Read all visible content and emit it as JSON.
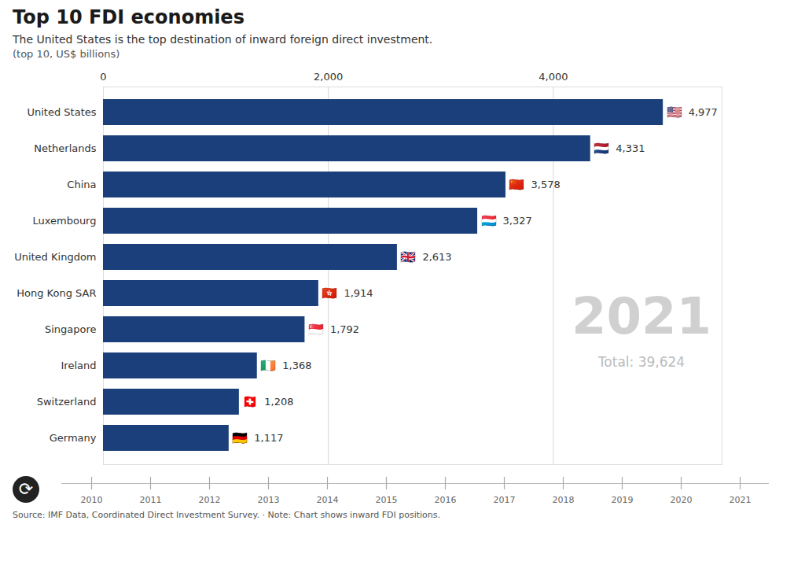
{
  "chart_data": {
    "type": "bar",
    "orientation": "horizontal",
    "title": "Top 10 FDI economies",
    "subtitle": "The United States is the top destination of inward foreign direct investment.",
    "annotations": [
      "(top 10, US$ billions)",
      "2021",
      "Total: 39,624",
      "⟳"
    ],
    "source": "Source: IMF Data, Coordinated Direct Investment Survey.  · Note: Chart shows inward FDI positions.",
    "categories": [
      "United States",
      "Netherlands",
      "China",
      "Luxembourg",
      "United Kingdom",
      "Hong Kong SAR",
      "Singapore",
      "Ireland",
      "Switzerland",
      "Germany"
    ],
    "values": [
      4977,
      4331,
      3578,
      3327,
      2613,
      1914,
      1792,
      1368,
      1208,
      1117
    ],
    "value_labels": [
      "4,977",
      "4,331",
      "3,578",
      "3,327",
      "2,613",
      "1,914",
      "1,792",
      "1,368",
      "1,208",
      "1,117"
    ],
    "flags": [
      "🇺🇸",
      "🇳🇱",
      "🇨🇳",
      "🇱🇺",
      "🇬🇧",
      "🇭🇰",
      "🇸🇬",
      "🇮🇪",
      "🇨🇭",
      "🇩🇪"
    ],
    "data_labels": true,
    "color": "#1a3f7a",
    "xlim": [
      0,
      5500
    ],
    "xticks": [
      0,
      {
        "value": 2000,
        "label": "2,000"
      },
      {
        "value": 4000,
        "label": "4,000"
      }
    ],
    "grid": true,
    "timeline": [
      "2010",
      "2011",
      "2012",
      "2013",
      "2014",
      "2015",
      "2016",
      "2017",
      "2018",
      "2019",
      "2020",
      "2021"
    ]
  }
}
